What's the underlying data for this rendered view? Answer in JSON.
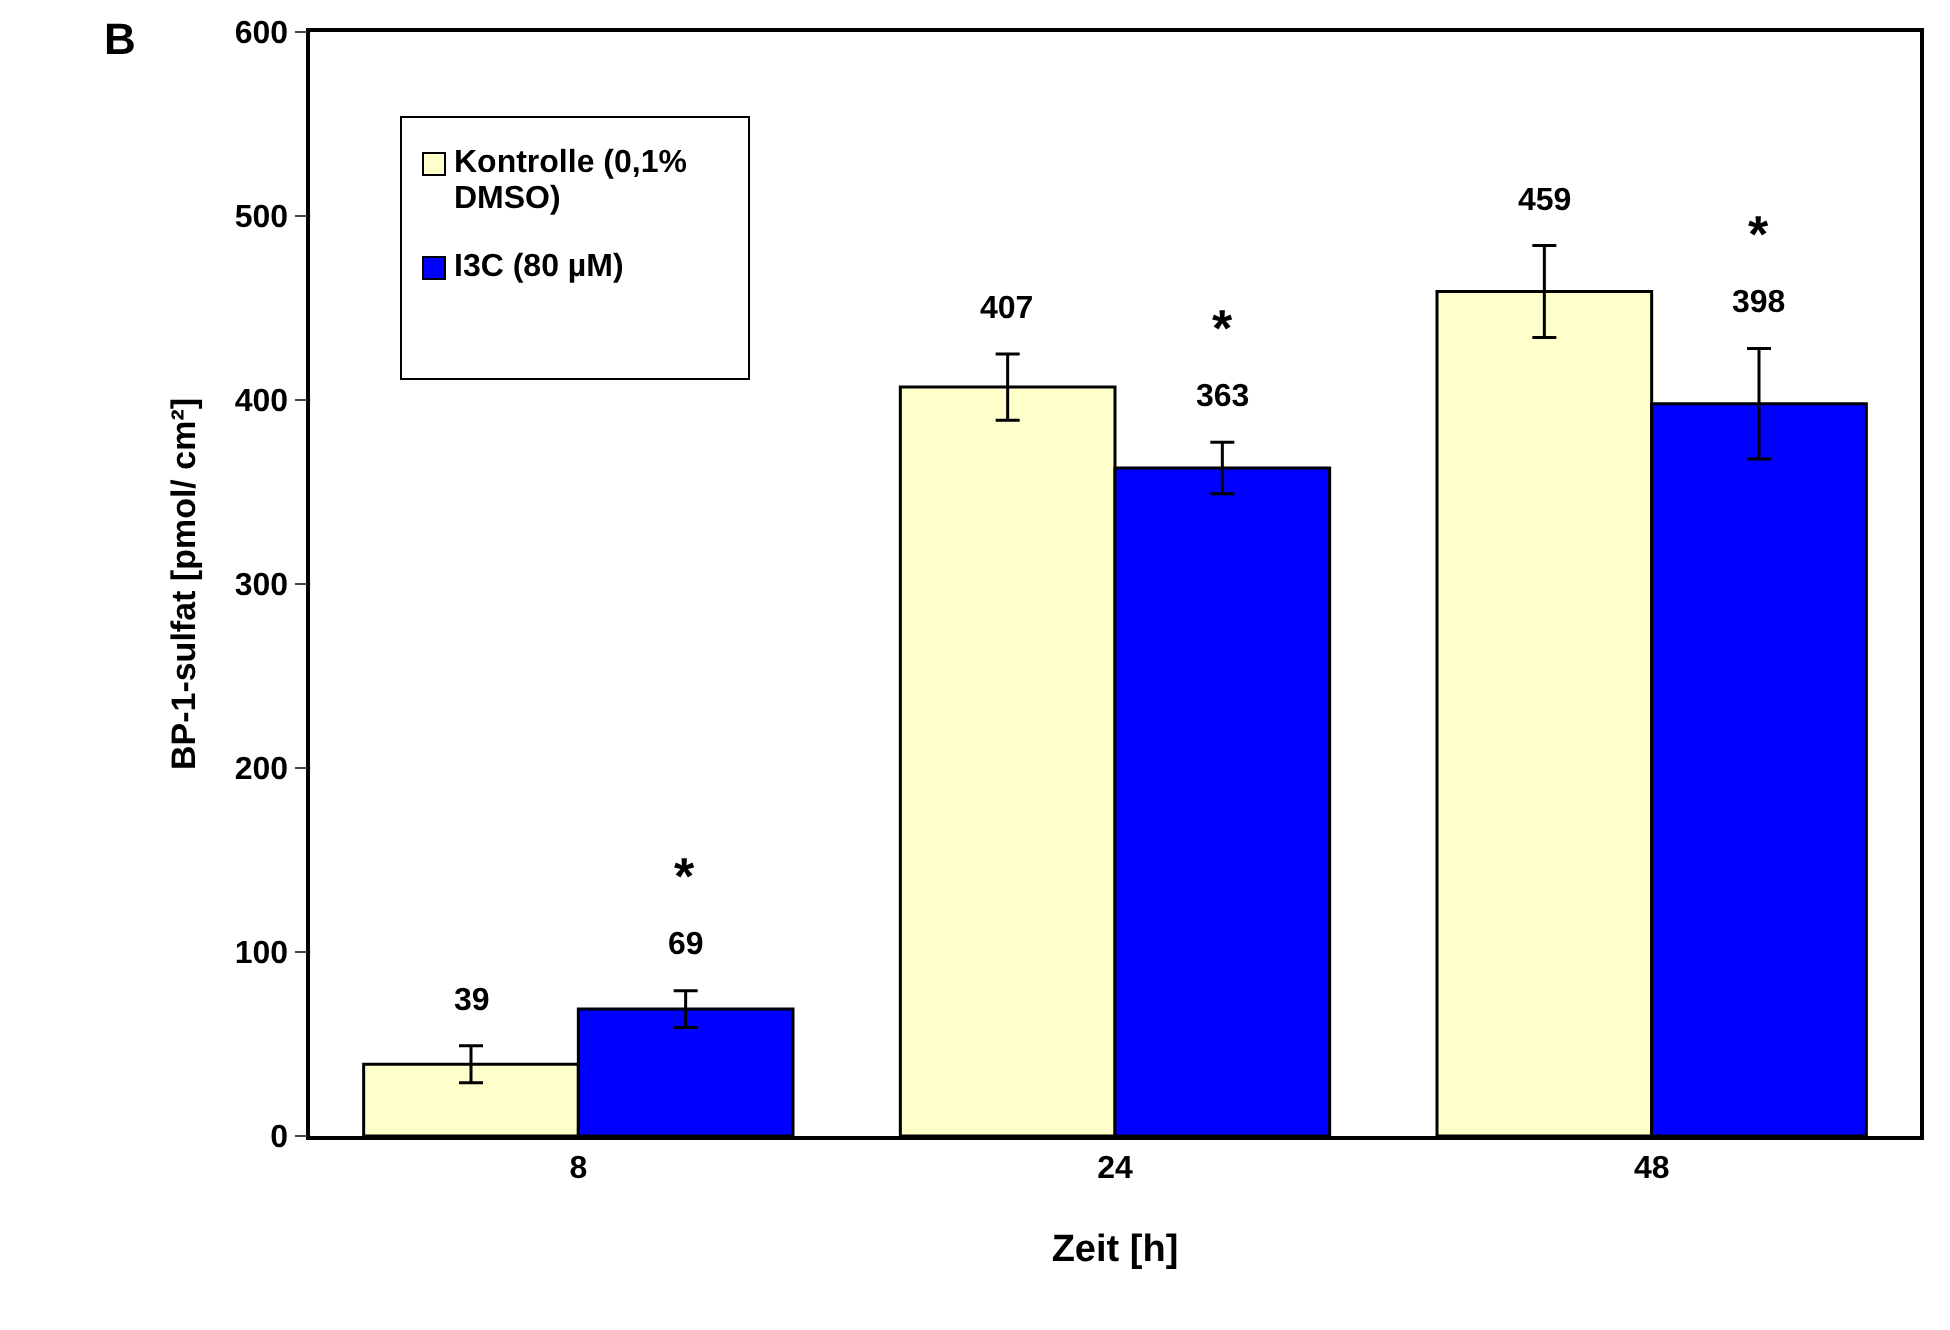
{
  "chart_data": {
    "type": "bar",
    "xlabel": "Zeit [h]",
    "ylabel": "BP-1-sulfat [pmol/ cm²]",
    "categories": [
      "8",
      "24",
      "48"
    ],
    "series": [
      {
        "name": "Kontrolle (0,1% DMSO)",
        "color": "#ffffcc",
        "values": [
          39,
          407,
          459
        ],
        "errors": [
          10,
          18,
          25
        ]
      },
      {
        "name": "I3C (80 µM)",
        "color": "#0000ff",
        "values": [
          69,
          363,
          398
        ],
        "errors": [
          10,
          14,
          30
        ]
      }
    ],
    "ylim": [
      0,
      600
    ],
    "yticks": [
      0,
      100,
      200,
      300,
      400,
      500,
      600
    ],
    "grid": false,
    "legend": "top left",
    "data_labels": true,
    "annotations": [
      "B",
      "*",
      "*",
      "*"
    ]
  }
}
